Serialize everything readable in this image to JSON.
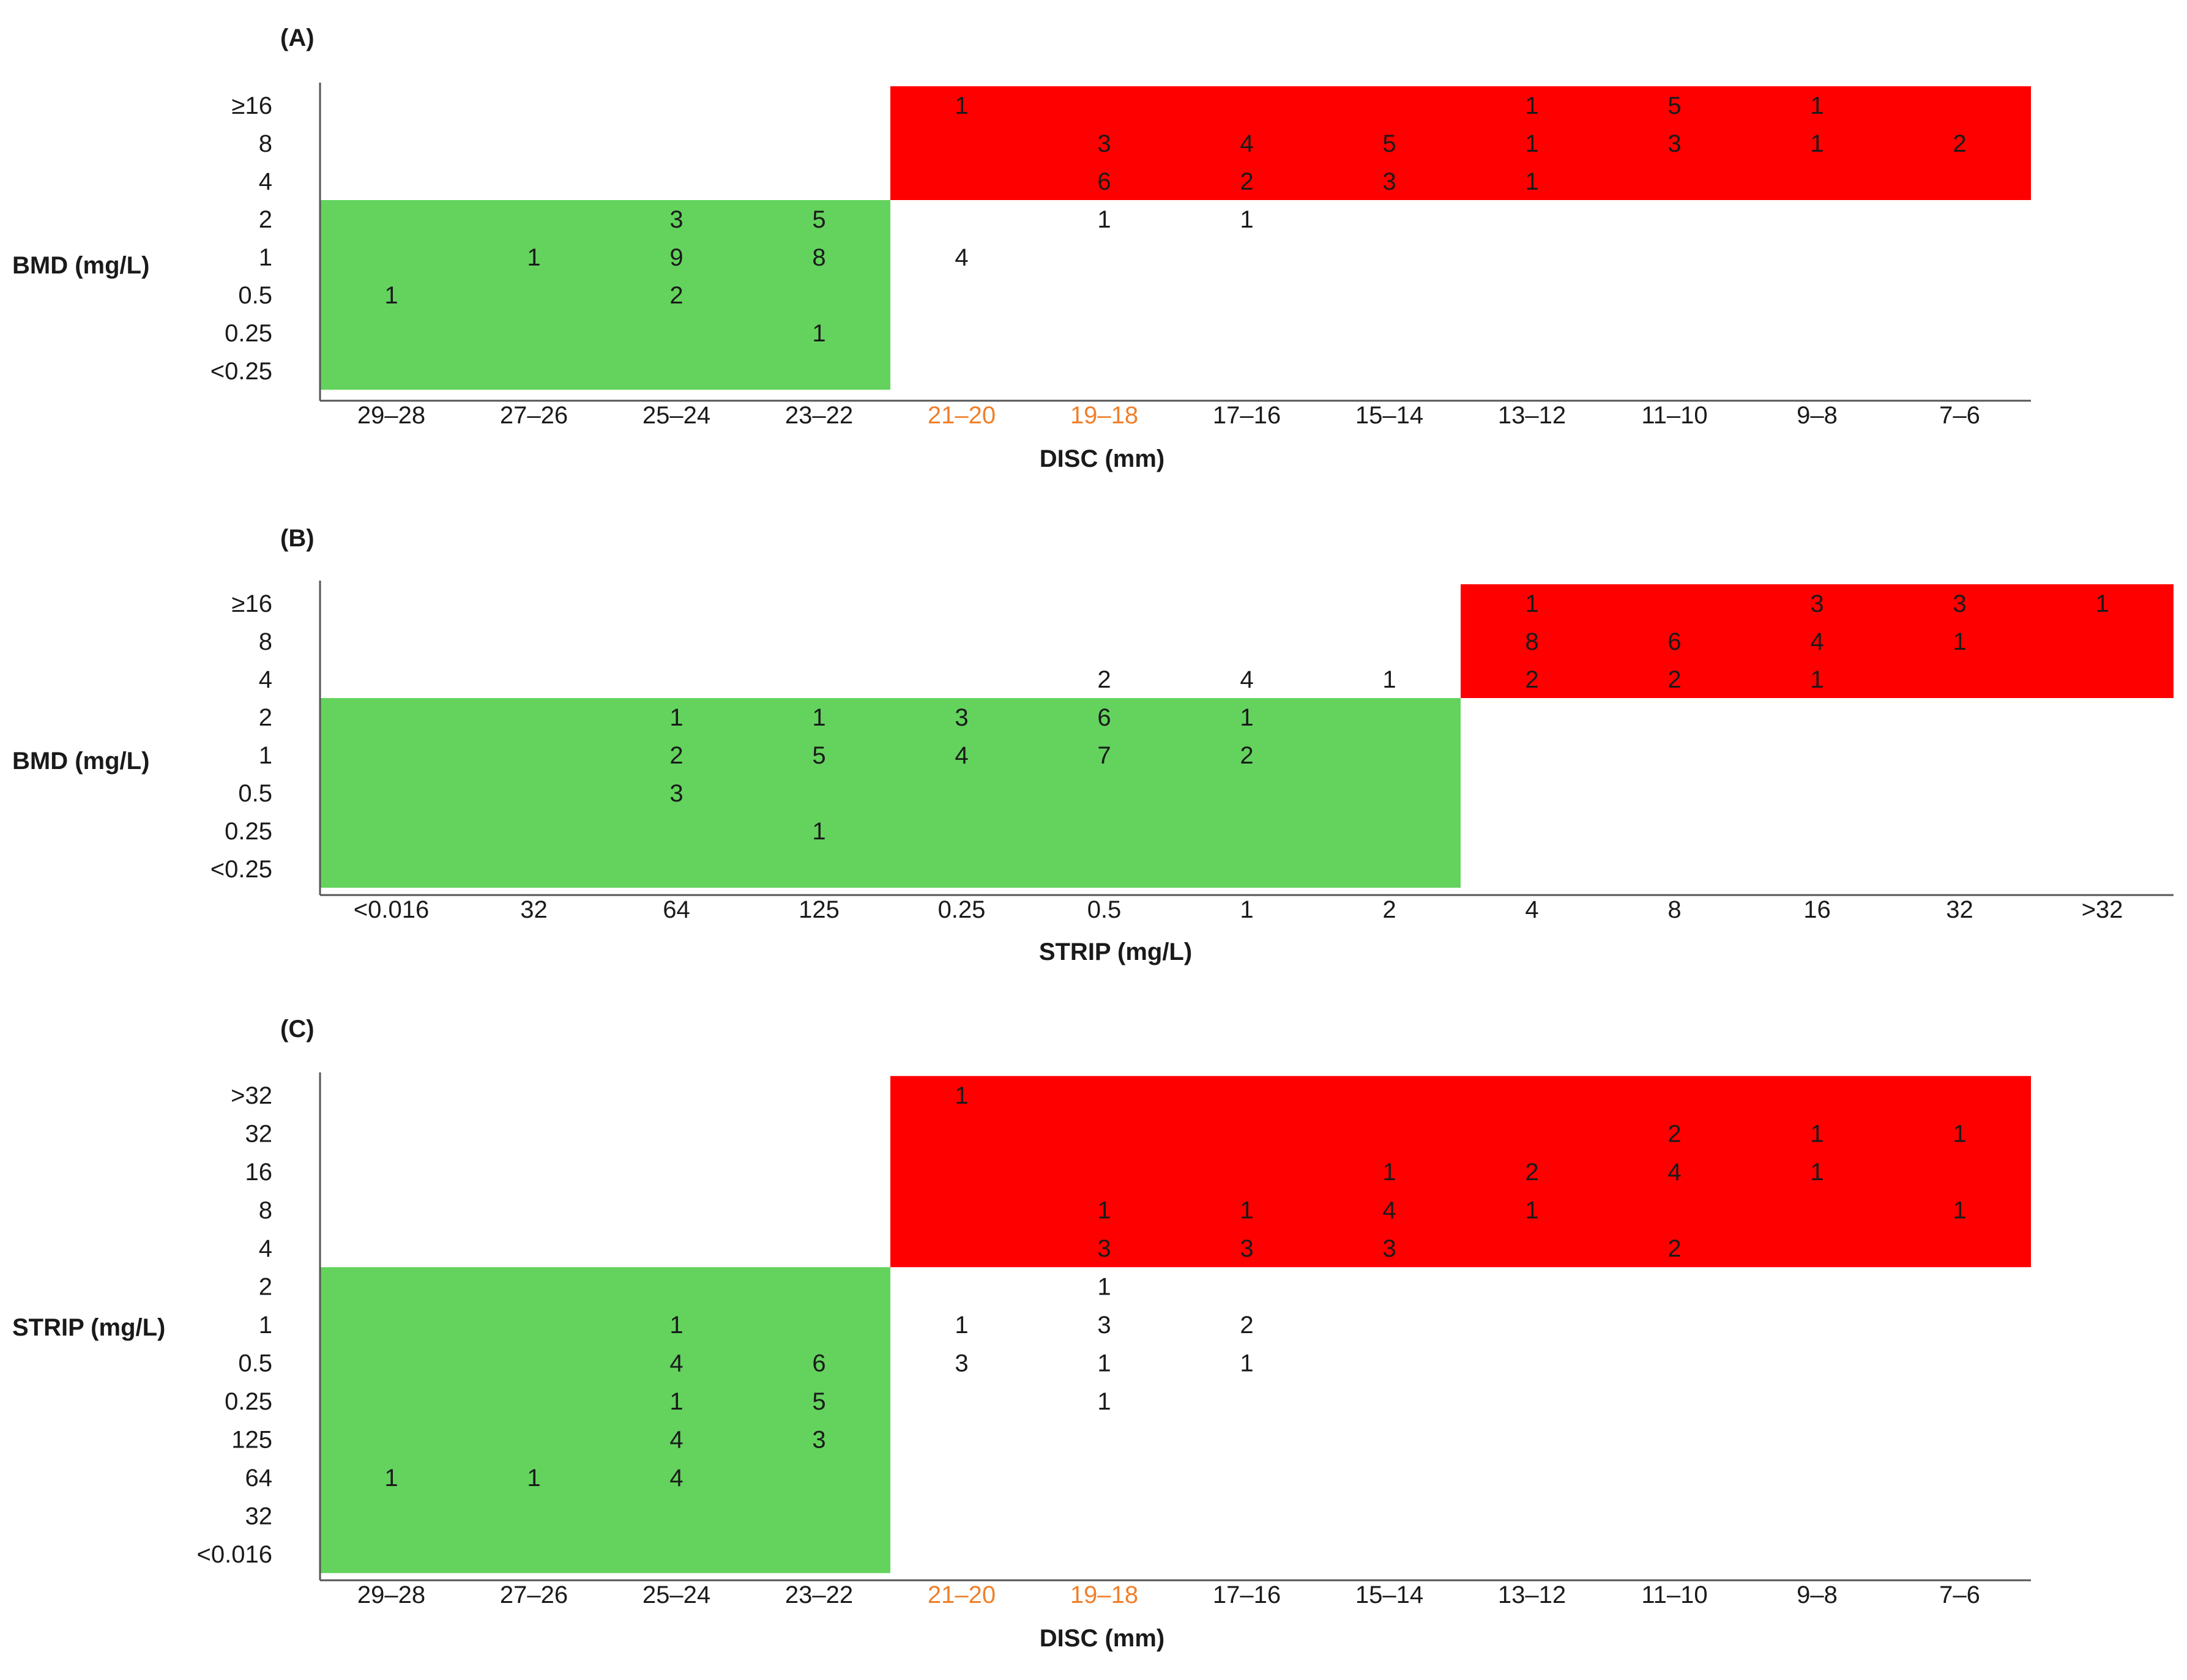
{
  "colors": {
    "green": "#63d35d",
    "red": "#ff0000",
    "highlight_tick": "#f07f2a",
    "text": "#1a1a1a",
    "axis": "#555555"
  },
  "chart_data": [
    {
      "type": "heatmap",
      "panel": "(A)",
      "xlabel": "DISC (mm)",
      "ylabel": "BMD (mg/L)",
      "x_categories": [
        "29–28",
        "27–26",
        "25–24",
        "23–22",
        "21–20",
        "19–18",
        "17–16",
        "15–14",
        "13–12",
        "11–10",
        "9–8",
        "7–6"
      ],
      "x_highlight": [
        "21–20",
        "19–18"
      ],
      "y_categories": [
        "≥16",
        "8",
        "4",
        "2",
        "1",
        "0.5",
        "0.25",
        "<0.25"
      ],
      "regions": [
        {
          "color": "green",
          "x_from": "29–28",
          "x_to": "23–22",
          "y_from": "2",
          "y_to": "<0.25"
        },
        {
          "color": "red",
          "x_from": "21–20",
          "x_to": "7–6",
          "y_from": "≥16",
          "y_to": "4"
        }
      ],
      "cells": [
        {
          "x": "21–20",
          "y": "≥16",
          "count": 1
        },
        {
          "x": "13–12",
          "y": "≥16",
          "count": 1
        },
        {
          "x": "11–10",
          "y": "≥16",
          "count": 5
        },
        {
          "x": "9–8",
          "y": "≥16",
          "count": 1
        },
        {
          "x": "19–18",
          "y": "8",
          "count": 3
        },
        {
          "x": "17–16",
          "y": "8",
          "count": 4
        },
        {
          "x": "15–14",
          "y": "8",
          "count": 5
        },
        {
          "x": "13–12",
          "y": "8",
          "count": 1
        },
        {
          "x": "11–10",
          "y": "8",
          "count": 3
        },
        {
          "x": "9–8",
          "y": "8",
          "count": 1
        },
        {
          "x": "7–6",
          "y": "8",
          "count": 2
        },
        {
          "x": "19–18",
          "y": "4",
          "count": 6
        },
        {
          "x": "17–16",
          "y": "4",
          "count": 2
        },
        {
          "x": "15–14",
          "y": "4",
          "count": 3
        },
        {
          "x": "13–12",
          "y": "4",
          "count": 1
        },
        {
          "x": "25–24",
          "y": "2",
          "count": 3
        },
        {
          "x": "23–22",
          "y": "2",
          "count": 5
        },
        {
          "x": "19–18",
          "y": "2",
          "count": 1
        },
        {
          "x": "17–16",
          "y": "2",
          "count": 1
        },
        {
          "x": "27–26",
          "y": "1",
          "count": 1
        },
        {
          "x": "25–24",
          "y": "1",
          "count": 9
        },
        {
          "x": "23–22",
          "y": "1",
          "count": 8
        },
        {
          "x": "21–20",
          "y": "1",
          "count": 4
        },
        {
          "x": "29–28",
          "y": "0.5",
          "count": 1
        },
        {
          "x": "25–24",
          "y": "0.5",
          "count": 2
        },
        {
          "x": "23–22",
          "y": "0.25",
          "count": 1
        }
      ]
    },
    {
      "type": "heatmap",
      "panel": "(B)",
      "xlabel": "STRIP (mg/L)",
      "ylabel": "BMD (mg/L)",
      "x_categories": [
        "<0.016",
        "32",
        "64",
        "125",
        "0.25",
        "0.5",
        "1",
        "2",
        "4",
        "8",
        "16",
        "32",
        ">32"
      ],
      "x_highlight": [],
      "y_categories": [
        "≥16",
        "8",
        "4",
        "2",
        "1",
        "0.5",
        "0.25",
        "<0.25"
      ],
      "regions": [
        {
          "color": "green",
          "x_from": "<0.016",
          "x_to": "2",
          "y_from": "2",
          "y_to": "<0.25"
        },
        {
          "color": "red",
          "x_from": "4",
          "x_to": ">32",
          "y_from": "≥16",
          "y_to": "4"
        }
      ],
      "cells": [
        {
          "x": "4",
          "y": "≥16",
          "count": 1
        },
        {
          "x": "16",
          "y": "≥16",
          "count": 3
        },
        {
          "x": "32",
          "y": "≥16",
          "count": 3,
          "col": 11
        },
        {
          "x": ">32",
          "y": "≥16",
          "count": 1
        },
        {
          "x": "4",
          "y": "8",
          "count": 8
        },
        {
          "x": "8",
          "y": "8",
          "count": 6
        },
        {
          "x": "16",
          "y": "8",
          "count": 4
        },
        {
          "x": "32",
          "y": "8",
          "count": 1,
          "col": 11
        },
        {
          "x": "0.5",
          "y": "4",
          "count": 2
        },
        {
          "x": "1",
          "y": "4",
          "count": 4
        },
        {
          "x": "2",
          "y": "4",
          "count": 1
        },
        {
          "x": "4",
          "y": "4",
          "count": 2
        },
        {
          "x": "8",
          "y": "4",
          "count": 2
        },
        {
          "x": "16",
          "y": "4",
          "count": 1
        },
        {
          "x": "64",
          "y": "2",
          "count": 1
        },
        {
          "x": "125",
          "y": "2",
          "count": 1
        },
        {
          "x": "0.25",
          "y": "2",
          "count": 3
        },
        {
          "x": "0.5",
          "y": "2",
          "count": 6
        },
        {
          "x": "1",
          "y": "2",
          "count": 1
        },
        {
          "x": "64",
          "y": "1",
          "count": 2
        },
        {
          "x": "125",
          "y": "1",
          "count": 5
        },
        {
          "x": "0.25",
          "y": "1",
          "count": 4
        },
        {
          "x": "0.5",
          "y": "1",
          "count": 7
        },
        {
          "x": "1",
          "y": "1",
          "count": 2
        },
        {
          "x": "64",
          "y": "0.5",
          "count": 3
        },
        {
          "x": "125",
          "y": "0.25",
          "count": 1
        }
      ]
    },
    {
      "type": "heatmap",
      "panel": "(C)",
      "xlabel": "DISC (mm)",
      "ylabel": "STRIP (mg/L)",
      "x_categories": [
        "29–28",
        "27–26",
        "25–24",
        "23–22",
        "21–20",
        "19–18",
        "17–16",
        "15–14",
        "13–12",
        "11–10",
        "9–8",
        "7–6"
      ],
      "x_highlight": [
        "21–20",
        "19–18"
      ],
      "y_categories": [
        ">32",
        "32",
        "16",
        "8",
        "4",
        "2",
        "1",
        "0.5",
        "0.25",
        "125",
        "64",
        "32",
        "<0.016"
      ],
      "regions": [
        {
          "color": "green",
          "x_from": "29–28",
          "x_to": "23–22",
          "y_from": "2",
          "y_to": "<0.016"
        },
        {
          "color": "red",
          "x_from": "21–20",
          "x_to": "7–6",
          "y_from": ">32",
          "y_to": "4"
        }
      ],
      "cells": [
        {
          "x": "21–20",
          "y": ">32",
          "count": 1
        },
        {
          "x": "11–10",
          "y": "32",
          "count": 2,
          "row": 1
        },
        {
          "x": "9–8",
          "y": "32",
          "count": 1,
          "row": 1
        },
        {
          "x": "7–6",
          "y": "32",
          "count": 1,
          "row": 1
        },
        {
          "x": "15–14",
          "y": "16",
          "count": 1
        },
        {
          "x": "13–12",
          "y": "16",
          "count": 2
        },
        {
          "x": "11–10",
          "y": "16",
          "count": 4
        },
        {
          "x": "9–8",
          "y": "16",
          "count": 1
        },
        {
          "x": "19–18",
          "y": "8",
          "count": 1
        },
        {
          "x": "17–16",
          "y": "8",
          "count": 1
        },
        {
          "x": "15–14",
          "y": "8",
          "count": 4
        },
        {
          "x": "13–12",
          "y": "8",
          "count": 1
        },
        {
          "x": "7–6",
          "y": "8",
          "count": 1
        },
        {
          "x": "19–18",
          "y": "4",
          "count": 3
        },
        {
          "x": "17–16",
          "y": "4",
          "count": 3
        },
        {
          "x": "15–14",
          "y": "4",
          "count": 3
        },
        {
          "x": "11–10",
          "y": "4",
          "count": 2
        },
        {
          "x": "19–18",
          "y": "2",
          "count": 1
        },
        {
          "x": "25–24",
          "y": "1",
          "count": 1
        },
        {
          "x": "21–20",
          "y": "1",
          "count": 1
        },
        {
          "x": "19–18",
          "y": "1",
          "count": 3
        },
        {
          "x": "17–16",
          "y": "1",
          "count": 2
        },
        {
          "x": "25–24",
          "y": "0.5",
          "count": 4
        },
        {
          "x": "23–22",
          "y": "0.5",
          "count": 6
        },
        {
          "x": "21–20",
          "y": "0.5",
          "count": 3
        },
        {
          "x": "19–18",
          "y": "0.5",
          "count": 1
        },
        {
          "x": "17–16",
          "y": "0.5",
          "count": 1
        },
        {
          "x": "25–24",
          "y": "0.25",
          "count": 1
        },
        {
          "x": "23–22",
          "y": "0.25",
          "count": 5
        },
        {
          "x": "19–18",
          "y": "0.25",
          "count": 1
        },
        {
          "x": "25–24",
          "y": "125",
          "count": 4
        },
        {
          "x": "23–22",
          "y": "125",
          "count": 3
        },
        {
          "x": "29–28",
          "y": "64",
          "count": 1
        },
        {
          "x": "27–26",
          "y": "64",
          "count": 1
        },
        {
          "x": "25–24",
          "y": "64",
          "count": 4
        }
      ]
    }
  ]
}
